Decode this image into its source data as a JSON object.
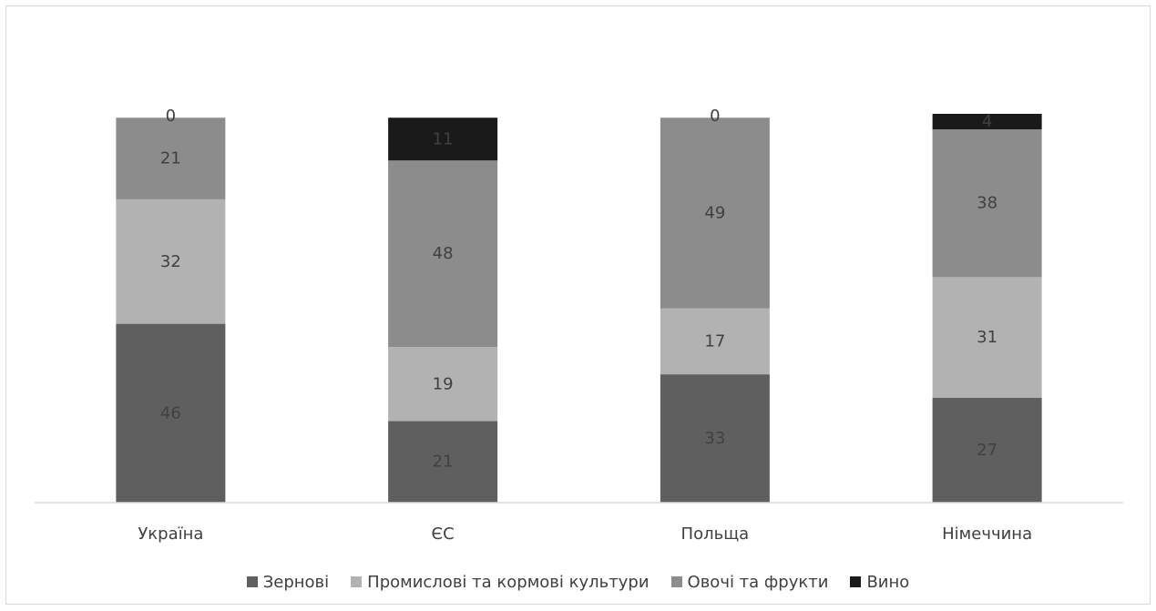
{
  "chart_data": {
    "type": "bar",
    "stacked": true,
    "categories": [
      "Україна",
      "ЄС",
      "Польща",
      "Німеччина"
    ],
    "series": [
      {
        "name": "Зернові",
        "values": [
          46,
          21,
          33,
          27
        ],
        "color": "#5f5f5f",
        "label_color": "#404040"
      },
      {
        "name": "Промислові та кормові культури",
        "values": [
          32,
          19,
          17,
          31
        ],
        "color": "#b2b2b2",
        "label_color": "#404040"
      },
      {
        "name": "Овочі та фрукти",
        "values": [
          21,
          48,
          49,
          38
        ],
        "color": "#8c8c8c",
        "label_color": "#404040"
      },
      {
        "name": "Вино",
        "values": [
          0,
          11,
          0,
          4
        ],
        "color": "#1a1a1a",
        "label_color": "#404040"
      }
    ],
    "legend_position": "bottom",
    "grid": false,
    "ylim": [
      0,
      100
    ]
  }
}
